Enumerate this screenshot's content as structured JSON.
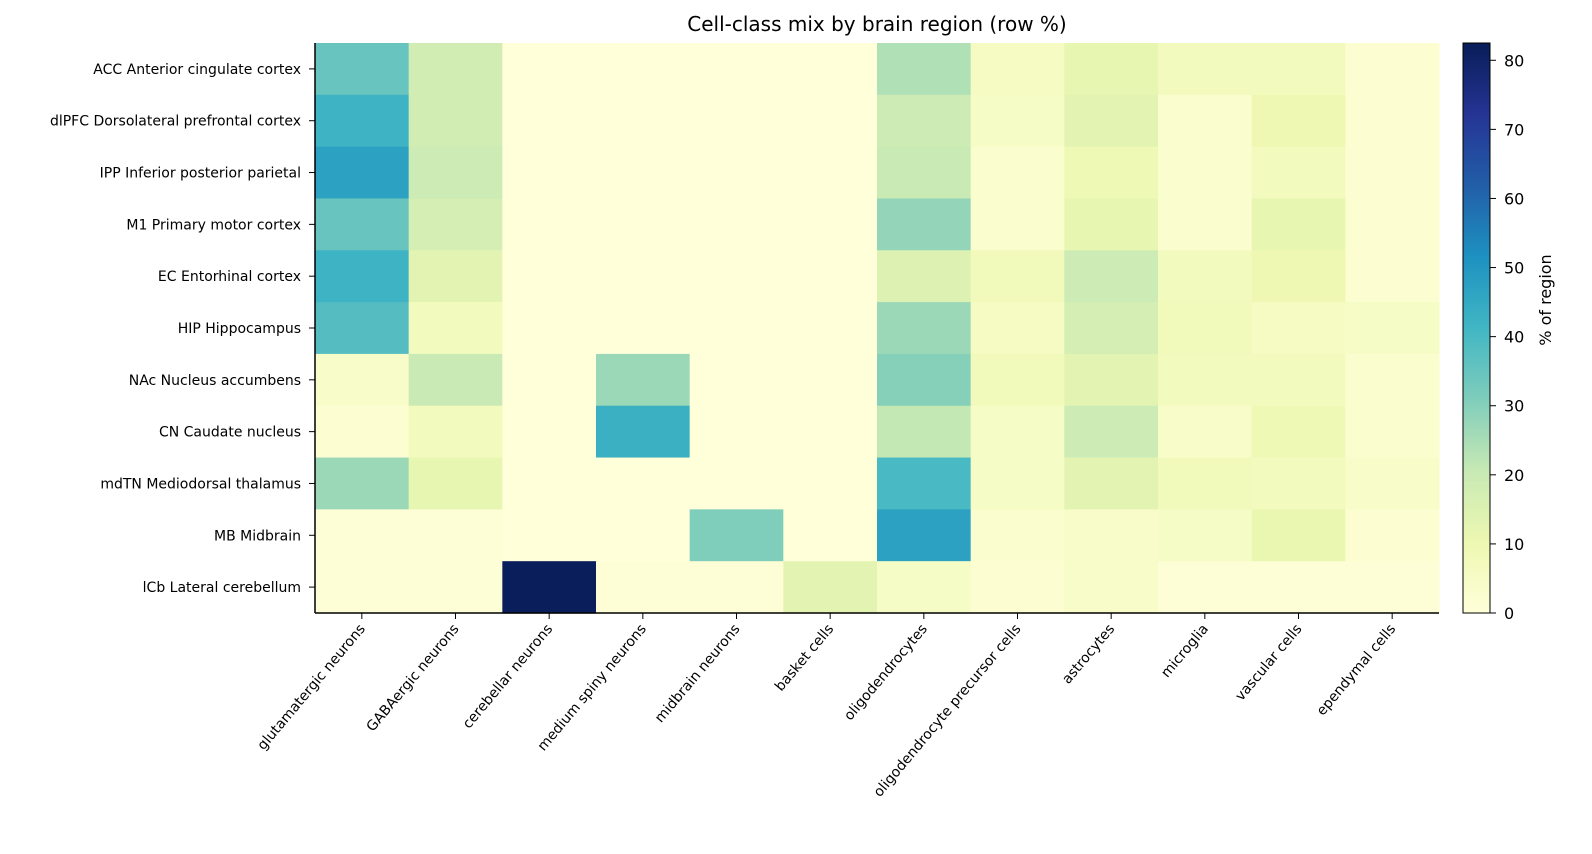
{
  "chart_data": {
    "type": "heatmap",
    "title": "Cell-class mix by brain region (row %)",
    "xlabel": "",
    "ylabel": "",
    "colorbar_label": "% of region",
    "colorbar_range": [
      0,
      82.5
    ],
    "colorbar_ticks": [
      0,
      10,
      20,
      30,
      40,
      50,
      60,
      70,
      80
    ],
    "colormap": "YlGnBu",
    "rows": [
      "ACC  Anterior cingulate cortex",
      "dlPFC  Dorsolateral prefrontal cortex",
      "IPP  Inferior posterior parietal",
      "M1  Primary motor cortex",
      "EC  Entorhinal cortex",
      "HIP  Hippocampus",
      "NAc  Nucleus accumbens",
      "CN  Caudate nucleus",
      "mdTN  Mediodorsal thalamus",
      "MB  Midbrain",
      "lCb  Lateral cerebellum"
    ],
    "columns": [
      "glutamatergic neurons",
      "GABAergic neurons",
      "cerebellar neurons",
      "medium spiny neurons",
      "midbrain neurons",
      "basket cells",
      "oligodendrocytes",
      "oligodendrocyte precursor cells",
      "astrocytes",
      "microglia",
      "vascular cells",
      "ependymal cells"
    ],
    "values": [
      [
        35,
        18,
        0,
        0,
        0,
        0,
        24,
        6,
        12,
        7,
        7,
        2
      ],
      [
        42,
        18,
        0,
        0,
        0,
        0,
        19,
        5,
        13,
        3,
        10,
        2
      ],
      [
        47,
        19,
        0,
        0,
        0,
        0,
        20,
        3,
        9,
        3,
        7,
        2
      ],
      [
        35,
        17,
        0,
        0,
        0,
        0,
        28,
        3,
        12,
        3,
        12,
        2
      ],
      [
        42,
        13,
        0,
        0,
        0,
        0,
        15,
        8,
        19,
        7,
        10,
        2
      ],
      [
        38,
        7,
        0,
        0,
        0,
        0,
        27,
        6,
        17,
        8,
        6,
        5
      ],
      [
        4,
        20,
        0,
        27,
        0,
        0,
        30,
        8,
        13,
        7,
        7,
        3
      ],
      [
        2,
        7,
        0,
        43,
        0,
        0,
        21,
        5,
        19,
        4,
        9,
        3
      ],
      [
        27,
        12,
        0,
        0,
        0,
        0,
        40,
        5,
        13,
        8,
        7,
        4
      ],
      [
        1,
        1,
        0,
        0,
        31,
        0,
        47,
        3,
        4,
        5,
        11,
        2
      ],
      [
        1,
        1,
        82,
        1,
        1,
        13,
        5,
        2,
        4,
        1,
        1,
        1
      ]
    ]
  }
}
